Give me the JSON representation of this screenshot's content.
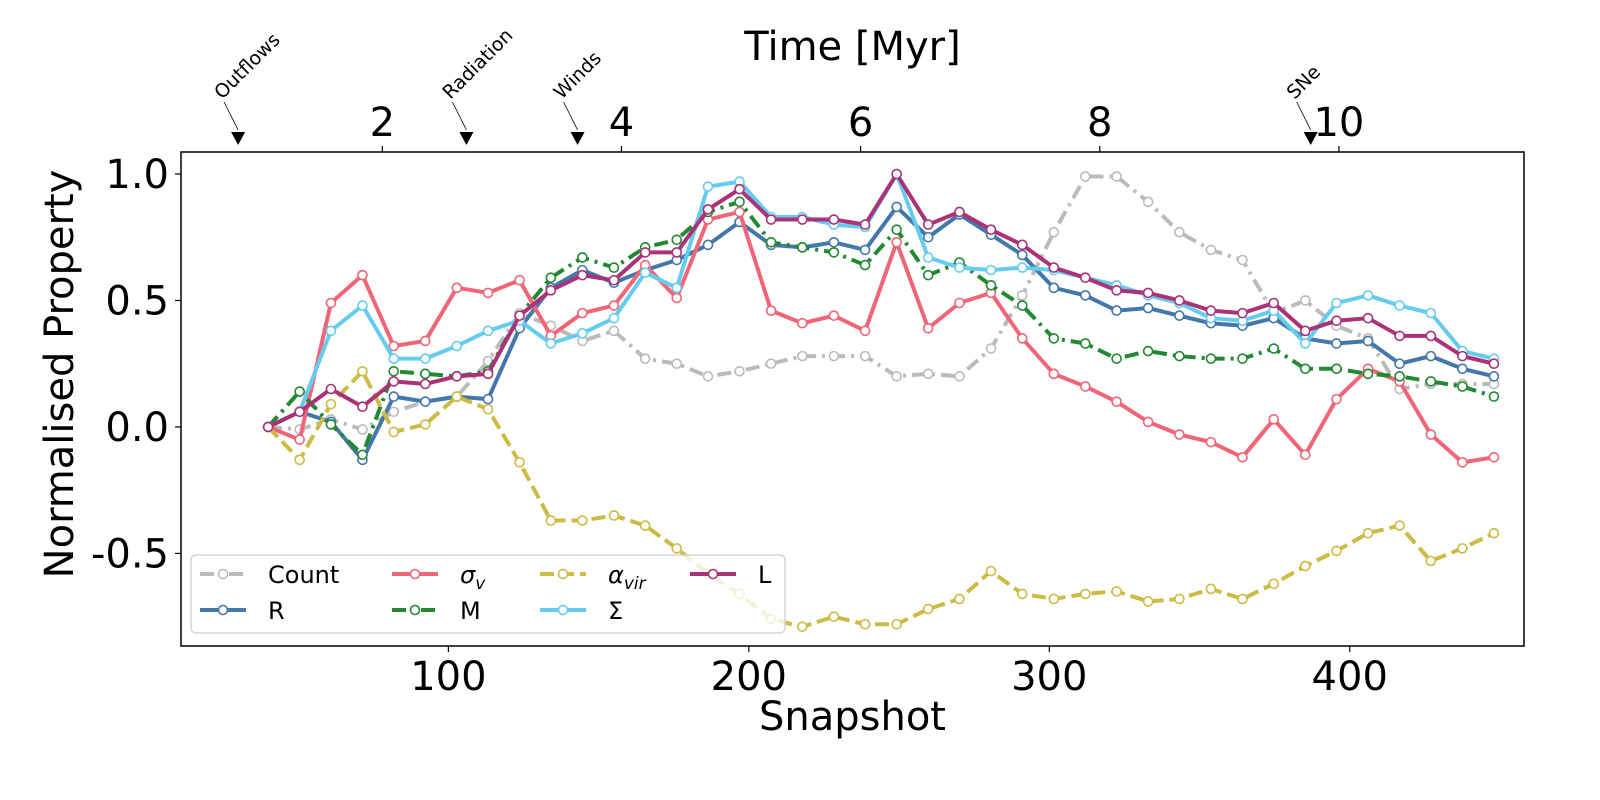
{
  "chart_data": {
    "type": "line",
    "xlabel": "Snapshot",
    "ylabel": "Normalised Property",
    "top_xlabel": "Time [Myr]",
    "xlim": [
      11,
      458
    ],
    "ylim": [
      -0.866,
      1.087
    ],
    "x_ticks": [
      100,
      200,
      300,
      400
    ],
    "y_ticks": [
      {
        "value": 1.0,
        "label": "1.0"
      },
      {
        "value": 0.5,
        "label": "0.5"
      },
      {
        "value": 0.0,
        "label": "0.0"
      },
      {
        "value": -0.5,
        "label": "-0.5"
      }
    ],
    "top_ticks": [
      {
        "time": 2,
        "label": "2"
      },
      {
        "time": 4,
        "label": "4"
      },
      {
        "time": 6,
        "label": "6"
      },
      {
        "time": 8,
        "label": "8"
      },
      {
        "time": 10,
        "label": "10"
      }
    ],
    "time_snapshot_map": {
      "snapshots_per_myr": 39.8,
      "snapshot_at_zero": -1.6
    },
    "events": [
      {
        "label": "Outflows",
        "snapshot": 30
      },
      {
        "label": "Radiation",
        "snapshot": 106
      },
      {
        "label": "Winds",
        "snapshot": 143
      },
      {
        "label": "SNe",
        "snapshot": 387
      }
    ],
    "grid": false,
    "legend_position": "lower-left",
    "x": [
      40,
      50.5,
      60.9,
      71.4,
      81.8,
      92.3,
      102.8,
      113.2,
      123.7,
      134.1,
      144.6,
      155.1,
      165.5,
      176,
      186.4,
      196.9,
      207.4,
      217.8,
      228.3,
      238.7,
      249.2,
      259.7,
      270.1,
      280.6,
      291,
      301.5,
      312,
      322.4,
      332.9,
      343.3,
      353.8,
      364.3,
      374.7,
      385.2,
      395.6,
      406.1,
      416.6,
      427,
      437.5,
      448
    ],
    "series": [
      {
        "name": "Count",
        "label": "Count",
        "color": "#bbbbbb",
        "dash": "dashdot",
        "values": [
          0.0,
          -0.01,
          0.03,
          -0.01,
          0.06,
          0.1,
          0.12,
          0.26,
          0.45,
          0.4,
          0.34,
          0.38,
          0.27,
          0.25,
          0.2,
          0.22,
          0.25,
          0.28,
          0.28,
          0.28,
          0.2,
          0.21,
          0.2,
          0.31,
          0.52,
          0.77,
          0.99,
          0.99,
          0.89,
          0.77,
          0.7,
          0.66,
          0.45,
          0.5,
          0.4,
          0.35,
          0.15,
          0.17,
          0.17,
          0.17
        ]
      },
      {
        "name": "R",
        "label": "R",
        "color": "#4477aa",
        "dash": "solid",
        "values": [
          0.0,
          0.06,
          0.02,
          -0.13,
          0.12,
          0.1,
          0.12,
          0.11,
          0.39,
          0.55,
          0.62,
          0.57,
          0.62,
          0.66,
          0.72,
          0.81,
          0.72,
          0.71,
          0.73,
          0.7,
          0.87,
          0.75,
          0.84,
          0.76,
          0.68,
          0.55,
          0.52,
          0.46,
          0.47,
          0.44,
          0.41,
          0.4,
          0.43,
          0.35,
          0.33,
          0.34,
          0.25,
          0.28,
          0.23,
          0.2
        ]
      },
      {
        "name": "sigma_v",
        "label": "σ",
        "sub": "v",
        "color": "#ee6677",
        "dash": "solid",
        "values": [
          0.0,
          -0.05,
          0.49,
          0.6,
          0.32,
          0.34,
          0.55,
          0.53,
          0.58,
          0.36,
          0.45,
          0.48,
          0.64,
          0.51,
          0.82,
          0.85,
          0.46,
          0.41,
          0.44,
          0.38,
          0.73,
          0.39,
          0.49,
          0.53,
          0.35,
          0.21,
          0.16,
          0.1,
          0.02,
          -0.03,
          -0.06,
          -0.12,
          0.03,
          -0.11,
          0.11,
          0.23,
          0.18,
          -0.03,
          -0.14,
          -0.12
        ]
      },
      {
        "name": "M",
        "label": "M",
        "color": "#228833",
        "dash": "dashdot",
        "values": [
          0.0,
          0.14,
          0.01,
          -0.11,
          0.22,
          0.21,
          0.2,
          0.22,
          0.44,
          0.59,
          0.67,
          0.63,
          0.71,
          0.74,
          0.85,
          0.89,
          0.73,
          0.71,
          0.69,
          0.64,
          0.78,
          0.6,
          0.65,
          0.56,
          0.48,
          0.35,
          0.33,
          0.27,
          0.3,
          0.28,
          0.27,
          0.27,
          0.31,
          0.23,
          0.23,
          0.21,
          0.2,
          0.18,
          0.16,
          0.12
        ]
      },
      {
        "name": "alpha_vir",
        "label": "α",
        "sub": "vir",
        "color": "#ccbb44",
        "dash": "dashed",
        "values": [
          0.0,
          -0.13,
          0.09,
          0.22,
          -0.02,
          0.01,
          0.12,
          0.07,
          -0.14,
          -0.37,
          -0.37,
          -0.35,
          -0.39,
          -0.48,
          -0.58,
          -0.66,
          -0.76,
          -0.79,
          -0.75,
          -0.78,
          -0.78,
          -0.72,
          -0.68,
          -0.57,
          -0.66,
          -0.68,
          -0.66,
          -0.65,
          -0.69,
          -0.68,
          -0.64,
          -0.68,
          -0.62,
          -0.55,
          -0.49,
          -0.42,
          -0.39,
          -0.53,
          -0.48,
          -0.42
        ]
      },
      {
        "name": "Sigma",
        "label": "Σ",
        "color": "#66ccee",
        "dash": "solid",
        "values": [
          0.0,
          0.06,
          0.38,
          0.48,
          0.27,
          0.27,
          0.32,
          0.38,
          0.42,
          0.33,
          0.37,
          0.43,
          0.61,
          0.55,
          0.95,
          0.97,
          0.83,
          0.83,
          0.8,
          0.79,
          1.0,
          0.67,
          0.63,
          0.62,
          0.63,
          0.62,
          0.59,
          0.56,
          0.52,
          0.49,
          0.43,
          0.42,
          0.46,
          0.33,
          0.49,
          0.52,
          0.48,
          0.45,
          0.3,
          0.27
        ]
      },
      {
        "name": "L",
        "label": "L",
        "color": "#aa3377",
        "dash": "solid",
        "values": [
          0.0,
          0.06,
          0.15,
          0.08,
          0.18,
          0.17,
          0.2,
          0.21,
          0.44,
          0.54,
          0.6,
          0.58,
          0.69,
          0.69,
          0.86,
          0.94,
          0.82,
          0.82,
          0.82,
          0.8,
          1.0,
          0.8,
          0.85,
          0.78,
          0.72,
          0.63,
          0.59,
          0.54,
          0.53,
          0.5,
          0.46,
          0.45,
          0.49,
          0.38,
          0.42,
          0.43,
          0.36,
          0.36,
          0.28,
          0.25
        ]
      }
    ]
  }
}
